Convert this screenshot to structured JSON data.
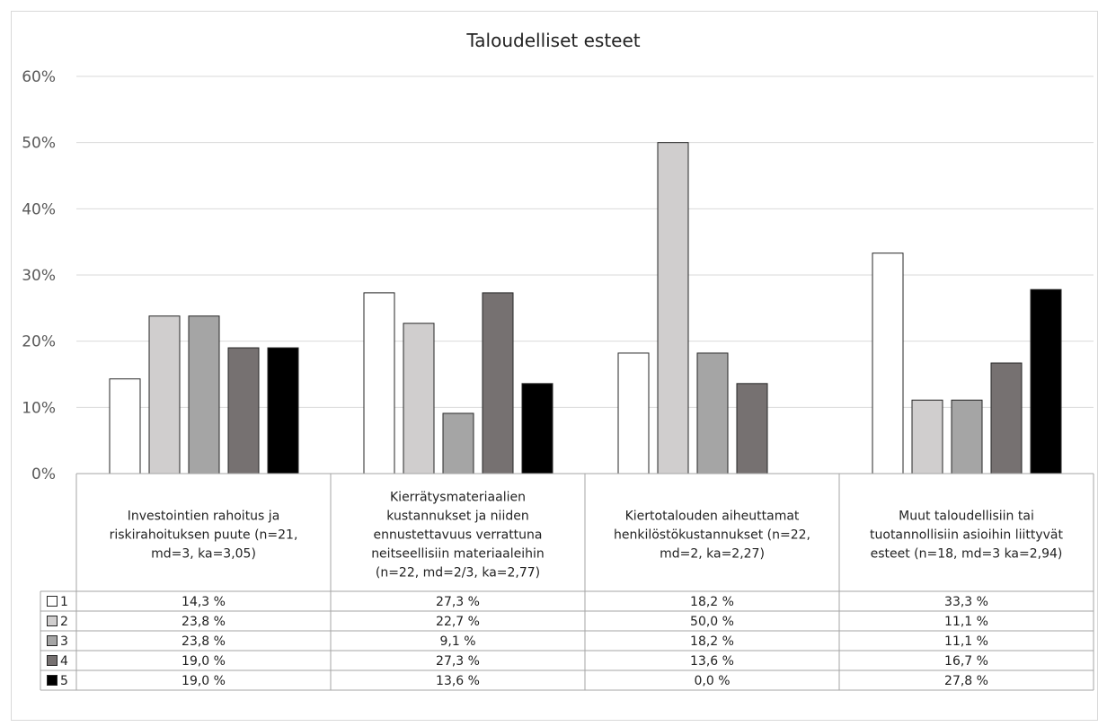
{
  "chart_data": {
    "type": "bar",
    "title": "Taloudelliset esteet",
    "ylim": [
      0,
      60
    ],
    "yticks": [
      "0%",
      "10%",
      "20%",
      "30%",
      "40%",
      "50%",
      "60%"
    ],
    "grid": true,
    "categories": [
      [
        "Investointien rahoitus ja",
        "riskirahoituksen puute (n=21,",
        "md=3, ka=3,05)"
      ],
      [
        "Kierrätysmateriaalien",
        "kustannukset ja niiden",
        "ennustettavuus verrattuna",
        "neitseellisiin materiaaleihin",
        "(n=22, md=2/3, ka=2,77)"
      ],
      [
        "Kiertotalouden aiheuttamat",
        "henkilöstökustannukset (n=22,",
        "md=2, ka=2,27)"
      ],
      [
        "Muut taloudellisiin tai",
        "tuotannollisiin asioihin liittyvät",
        "esteet (n=18, md=3 ka=2,94)"
      ]
    ],
    "series": [
      {
        "name": "1",
        "color": "#ffffff",
        "values": [
          14.3,
          27.3,
          18.2,
          33.3
        ],
        "labels": [
          "14,3 %",
          "27,3 %",
          "18,2 %",
          "33,3 %"
        ]
      },
      {
        "name": "2",
        "color": "#d0cece",
        "values": [
          23.8,
          22.7,
          50.0,
          11.1
        ],
        "labels": [
          "23,8 %",
          "22,7 %",
          "50,0 %",
          "11,1 %"
        ]
      },
      {
        "name": "3",
        "color": "#a5a5a5",
        "values": [
          23.8,
          9.1,
          18.2,
          11.1
        ],
        "labels": [
          "23,8 %",
          "9,1 %",
          "18,2 %",
          "11,1 %"
        ]
      },
      {
        "name": "4",
        "color": "#767171",
        "values": [
          19.0,
          27.3,
          13.6,
          16.7
        ],
        "labels": [
          "19,0 %",
          "27,3 %",
          "13,6 %",
          "16,7 %"
        ]
      },
      {
        "name": "5",
        "color": "#000000",
        "values": [
          19.0,
          13.6,
          0.0,
          27.8
        ],
        "labels": [
          "19,0 %",
          "13,6 %",
          "0,0 %",
          "27,8 %"
        ]
      }
    ],
    "legend": "data-table"
  }
}
